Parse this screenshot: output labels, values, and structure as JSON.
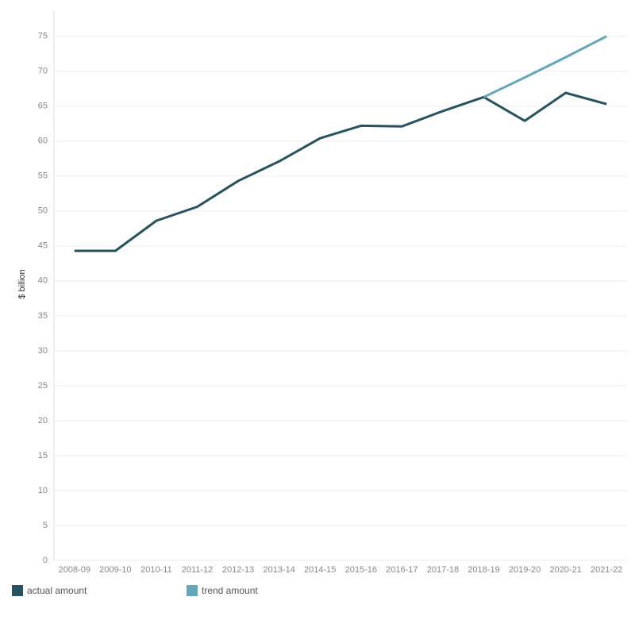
{
  "chart_data": {
    "type": "line",
    "y_label": "$ billion",
    "categories": [
      "2008-09",
      "2009-10",
      "2010-11",
      "2011-12",
      "2012-13",
      "2013-14",
      "2014-15",
      "2015-16",
      "2016-17",
      "2017-18",
      "2018-19",
      "2019-20",
      "2020-21",
      "2021-22"
    ],
    "series": [
      {
        "name": "actual amount",
        "color": "#27525f",
        "values": [
          44.3,
          44.3,
          48.6,
          50.6,
          54.3,
          57.1,
          60.4,
          62.2,
          62.1,
          64.3,
          66.3,
          62.9,
          66.9,
          65.3
        ]
      },
      {
        "name": "trend amount",
        "color": "#63a7bb",
        "values": [
          null,
          null,
          null,
          null,
          null,
          null,
          null,
          null,
          null,
          null,
          66.3,
          69.1,
          72.0,
          75.0
        ]
      }
    ],
    "ylim": [
      0,
      78.6
    ],
    "yticks": [
      0,
      5,
      10,
      15,
      20,
      25,
      30,
      35,
      40,
      45,
      50,
      55,
      60,
      65,
      70,
      75
    ],
    "grid": true
  }
}
